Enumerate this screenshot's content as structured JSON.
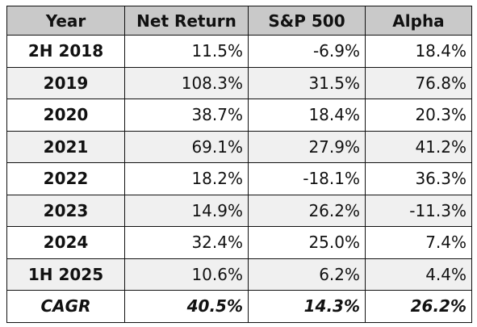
{
  "table": {
    "headers": [
      "Year",
      "Net Return",
      "S&P 500",
      "Alpha"
    ],
    "rows": [
      {
        "year": "2H 2018",
        "net_return": "11.5%",
        "sp500": "-6.9%",
        "alpha": "18.4%"
      },
      {
        "year": "2019",
        "net_return": "108.3%",
        "sp500": "31.5%",
        "alpha": "76.8%"
      },
      {
        "year": "2020",
        "net_return": "38.7%",
        "sp500": "18.4%",
        "alpha": "20.3%"
      },
      {
        "year": "2021",
        "net_return": "69.1%",
        "sp500": "27.9%",
        "alpha": "41.2%"
      },
      {
        "year": "2022",
        "net_return": "18.2%",
        "sp500": "-18.1%",
        "alpha": "36.3%"
      },
      {
        "year": "2023",
        "net_return": "14.9%",
        "sp500": "26.2%",
        "alpha": "-11.3%"
      },
      {
        "year": "2024",
        "net_return": "32.4%",
        "sp500": "25.0%",
        "alpha": "7.4%"
      },
      {
        "year": "1H 2025",
        "net_return": "10.6%",
        "sp500": "6.2%",
        "alpha": "4.4%"
      }
    ],
    "summary": {
      "year": "CAGR",
      "net_return": "40.5%",
      "sp500": "14.3%",
      "alpha": "26.2%"
    }
  },
  "colors": {
    "header_background": "#c9c9c9",
    "alt_row_background": "#f0f0f0",
    "border": "#111111"
  }
}
